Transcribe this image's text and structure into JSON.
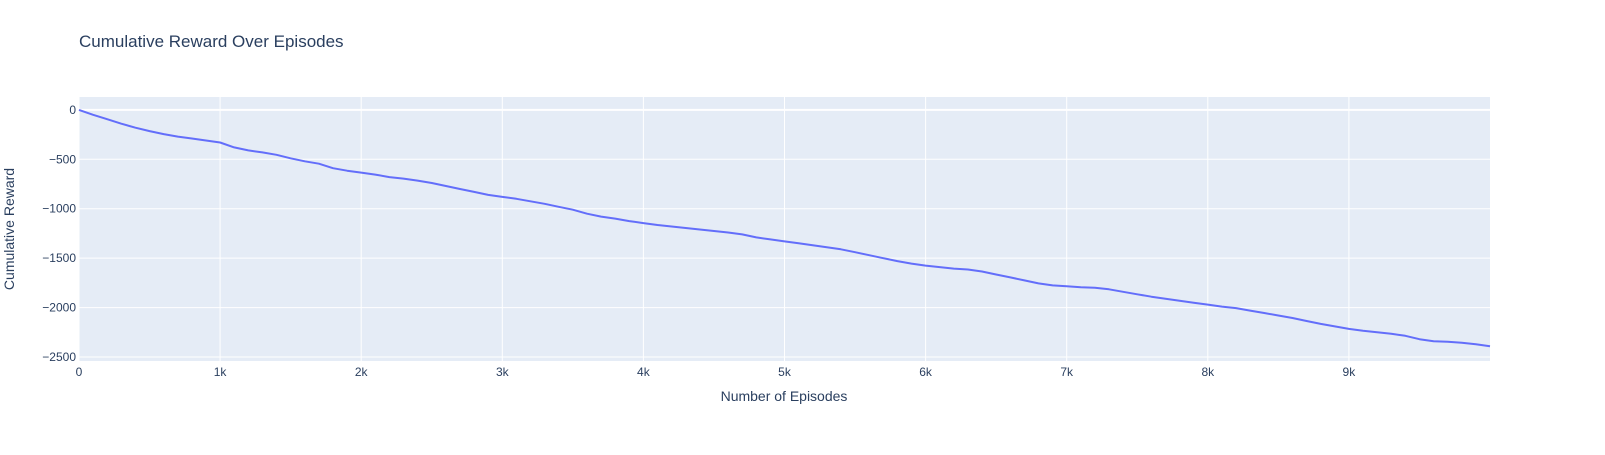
{
  "chart_data": {
    "type": "line",
    "title": "Cumulative Reward Over Episodes",
    "xlabel": "Number of Episodes",
    "ylabel": "Cumulative Reward",
    "xlim": [
      0,
      10000
    ],
    "ylim": [
      -2540,
      130
    ],
    "x_ticks": [
      0,
      1000,
      2000,
      3000,
      4000,
      5000,
      6000,
      7000,
      8000,
      9000
    ],
    "x_tick_labels": [
      "0",
      "1k",
      "2k",
      "3k",
      "4k",
      "5k",
      "6k",
      "7k",
      "8k",
      "9k"
    ],
    "y_ticks": [
      0,
      -500,
      -1000,
      -1500,
      -2000,
      -2500
    ],
    "y_tick_labels": [
      "0",
      "−500",
      "−1000",
      "−1500",
      "−2000",
      "−2500"
    ],
    "grid": true,
    "series": [
      {
        "color": "#636efa",
        "x": [
          0,
          100,
          200,
          300,
          400,
          500,
          600,
          700,
          800,
          900,
          1000,
          1100,
          1200,
          1300,
          1400,
          1500,
          1600,
          1700,
          1800,
          1900,
          2000,
          2100,
          2200,
          2300,
          2400,
          2500,
          2600,
          2700,
          2800,
          2900,
          3000,
          3100,
          3200,
          3300,
          3400,
          3500,
          3600,
          3700,
          3800,
          3900,
          4000,
          4100,
          4200,
          4300,
          4400,
          4500,
          4600,
          4700,
          4800,
          4900,
          5000,
          5100,
          5200,
          5300,
          5400,
          5500,
          5600,
          5700,
          5800,
          5900,
          6000,
          6100,
          6200,
          6300,
          6400,
          6500,
          6600,
          6700,
          6800,
          6900,
          7000,
          7100,
          7200,
          7300,
          7400,
          7500,
          7600,
          7700,
          7800,
          7900,
          8000,
          8100,
          8200,
          8300,
          8400,
          8500,
          8600,
          8700,
          8800,
          8900,
          9000,
          9100,
          9200,
          9300,
          9400,
          9500,
          9600,
          9700,
          9800,
          9900,
          10000
        ],
        "y": [
          0,
          -50,
          -95,
          -140,
          -180,
          -215,
          -245,
          -270,
          -290,
          -310,
          -330,
          -380,
          -410,
          -430,
          -455,
          -490,
          -520,
          -545,
          -590,
          -615,
          -635,
          -655,
          -680,
          -695,
          -715,
          -740,
          -770,
          -800,
          -830,
          -860,
          -880,
          -900,
          -925,
          -950,
          -980,
          -1010,
          -1050,
          -1080,
          -1100,
          -1125,
          -1145,
          -1165,
          -1180,
          -1195,
          -1210,
          -1225,
          -1240,
          -1260,
          -1290,
          -1310,
          -1330,
          -1350,
          -1370,
          -1390,
          -1410,
          -1440,
          -1470,
          -1500,
          -1530,
          -1555,
          -1575,
          -1590,
          -1605,
          -1615,
          -1635,
          -1665,
          -1695,
          -1725,
          -1755,
          -1775,
          -1785,
          -1795,
          -1800,
          -1815,
          -1840,
          -1865,
          -1890,
          -1910,
          -1930,
          -1950,
          -1970,
          -1990,
          -2005,
          -2030,
          -2055,
          -2080,
          -2105,
          -2135,
          -2165,
          -2190,
          -2215,
          -2235,
          -2250,
          -2265,
          -2285,
          -2320,
          -2340,
          -2345,
          -2355,
          -2370,
          -2390
        ]
      }
    ]
  }
}
